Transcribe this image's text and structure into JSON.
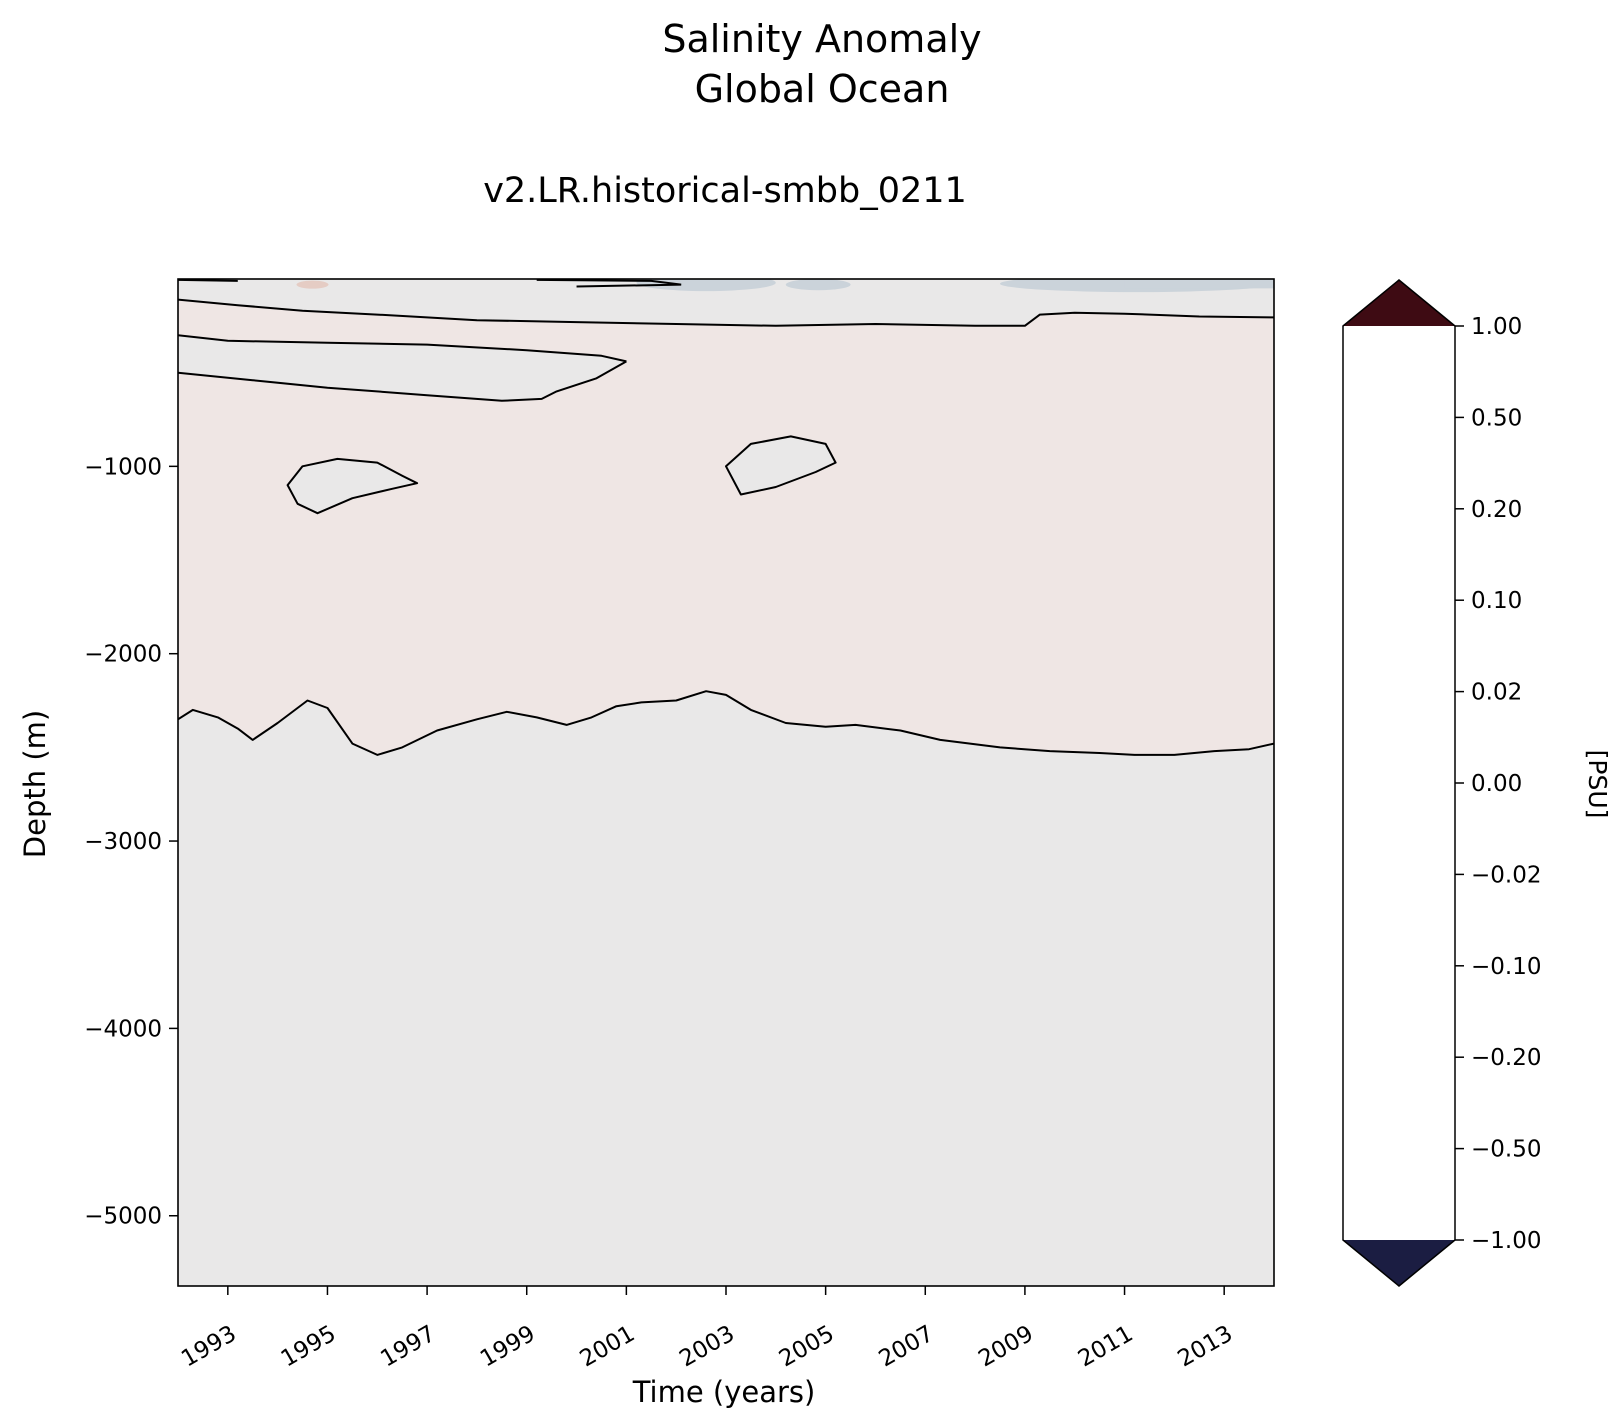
{
  "chart_data": {
    "type": "heatmap",
    "title": "Salinity Anomaly",
    "title_line2": "Global Ocean",
    "subtitle": "v2.LR.historical-smbb_0211",
    "xlabel": "Time (years)",
    "ylabel": "Depth (m)",
    "xlim": [
      1992.0,
      2014.0
    ],
    "ylim": [
      -5375,
      0
    ],
    "x_ticks": [
      1993,
      1995,
      1997,
      1999,
      2001,
      2003,
      2005,
      2007,
      2009,
      2011,
      2013
    ],
    "x_tick_labels": [
      "1993",
      "1995",
      "1997",
      "1999",
      "2001",
      "2003",
      "2005",
      "2007",
      "2009",
      "2011",
      "2013"
    ],
    "y_ticks": [
      -1000,
      -2000,
      -3000,
      -4000,
      -5000
    ],
    "y_tick_labels": [
      "−1000",
      "−2000",
      "−3000",
      "−4000",
      "−5000"
    ],
    "grid": false,
    "colorbar": {
      "label": "[PSU]",
      "levels": [
        -1.0,
        -0.5,
        -0.2,
        -0.1,
        -0.02,
        0.0,
        0.02,
        0.1,
        0.2,
        0.5,
        1.0
      ],
      "tick_labels": [
        "−1.00",
        "−0.50",
        "−0.20",
        "−0.10",
        "−0.02",
        "0.00",
        "0.02",
        "0.10",
        "0.20",
        "0.50",
        "1.00"
      ],
      "colors": [
        "#283f9c",
        "#2778b9",
        "#78a9c0",
        "#cbd3da",
        "#e9e8e8",
        "#efe6e4",
        "#e5ccc4",
        "#cf8d71",
        "#b8462e",
        "#860f26"
      ],
      "under_color": "#1b1d42",
      "over_color": "#3e0b13",
      "extend": "both"
    },
    "fields": {
      "negative_weak_color": "#e9e8e8",
      "positive_weak_color": "#efe6e4",
      "negative_moderate_color": "#cbd3da",
      "positive_moderate_color": "#e5ccc4"
    },
    "zero_contours": [
      {
        "name": "deep-boundary",
        "x": [
          1992.0,
          1992.3,
          1992.8,
          1993.2,
          1993.5,
          1994.0,
          1994.6,
          1995.0,
          1995.5,
          1996.0,
          1996.5,
          1997.2,
          1998.0,
          1998.6,
          1999.2,
          1999.8,
          2000.3,
          2000.8,
          2001.3,
          2002.0,
          2002.6,
          2003.0,
          2003.5,
          2004.2,
          2005.0,
          2005.6,
          2006.5,
          2007.3,
          2008.5,
          2009.5,
          2010.5,
          2011.2,
          2012.0,
          2012.8,
          2013.5,
          2014.0
        ],
        "y": [
          -2350,
          -2300,
          -2340,
          -2400,
          -2460,
          -2370,
          -2250,
          -2290,
          -2480,
          -2540,
          -2500,
          -2410,
          -2350,
          -2310,
          -2340,
          -2380,
          -2340,
          -2280,
          -2260,
          -2250,
          -2200,
          -2220,
          -2300,
          -2370,
          -2390,
          -2380,
          -2410,
          -2460,
          -2500,
          -2520,
          -2530,
          -2540,
          -2540,
          -2520,
          -2510,
          -2480
        ]
      },
      {
        "name": "eddy-1995",
        "x": [
          1994.2,
          1994.5,
          1995.2,
          1996.0,
          1996.5,
          1996.8,
          1996.3,
          1995.5,
          1994.8,
          1994.4,
          1994.2
        ],
        "y": [
          -1100,
          -1000,
          -960,
          -980,
          -1050,
          -1090,
          -1120,
          -1170,
          -1250,
          -1200,
          -1100
        ]
      },
      {
        "name": "eddy-2004",
        "x": [
          2003.0,
          2003.5,
          2004.3,
          2005.0,
          2005.2,
          2004.8,
          2004.0,
          2003.3,
          2003.0
        ],
        "y": [
          -1000,
          -880,
          -840,
          -880,
          -980,
          -1030,
          -1110,
          -1150,
          -1000
        ]
      },
      {
        "name": "upper-negative-band-top",
        "x": [
          1992.0,
          1993.0,
          1995.0,
          1997.0,
          1999.0,
          2000.5,
          2001.0
        ],
        "y": [
          -300,
          -330,
          -340,
          -350,
          -380,
          -410,
          -440
        ]
      },
      {
        "name": "upper-negative-band-bottom",
        "x": [
          1992.0,
          1993.5,
          1995.0,
          1997.0,
          1998.5,
          1999.3,
          1999.6,
          2000.4,
          2001.0
        ],
        "y": [
          -500,
          -540,
          -580,
          -620,
          -650,
          -640,
          -600,
          -530,
          -440
        ]
      },
      {
        "name": "near-surface-boundary",
        "x": [
          1992.0,
          1993.2,
          1994.5,
          1996.0,
          1998.0,
          2000.0,
          2002.0,
          2004.0,
          2006.0,
          2008.0,
          2009.0,
          2009.3,
          2010.0,
          2011.0,
          2012.5,
          2014.0
        ],
        "y": [
          -110,
          -140,
          -170,
          -190,
          -220,
          -230,
          -240,
          -250,
          -240,
          -250,
          -250,
          -190,
          -180,
          -185,
          -200,
          -205
        ]
      }
    ]
  }
}
